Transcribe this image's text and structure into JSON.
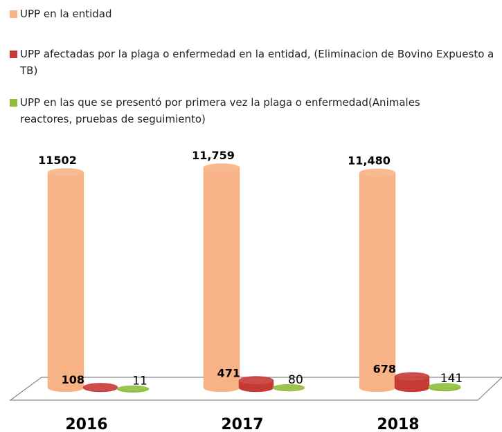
{
  "chart_data": {
    "type": "bar3d",
    "categories": [
      "2016",
      "2017",
      "2018"
    ],
    "series": [
      {
        "name": "UPP en la entidad",
        "color": "#f7b385",
        "values": [
          11502,
          11759,
          11480
        ],
        "value_labels": [
          "11502",
          "11,759",
          "11,480"
        ]
      },
      {
        "name": "UPP afectadas por la plaga o enfermedad en la entidad, (Eliminacion de Bovino Expuesto a TB)",
        "color": "#c63a35",
        "values": [
          108,
          471,
          678
        ]
      },
      {
        "name": "UPP en las que se presentó por primera vez la plaga o enfermedad(Animales reactores, pruebas de seguimiento)",
        "color": "#8fbc3c",
        "values": [
          11,
          80,
          141
        ]
      }
    ],
    "legend": "top-left"
  }
}
